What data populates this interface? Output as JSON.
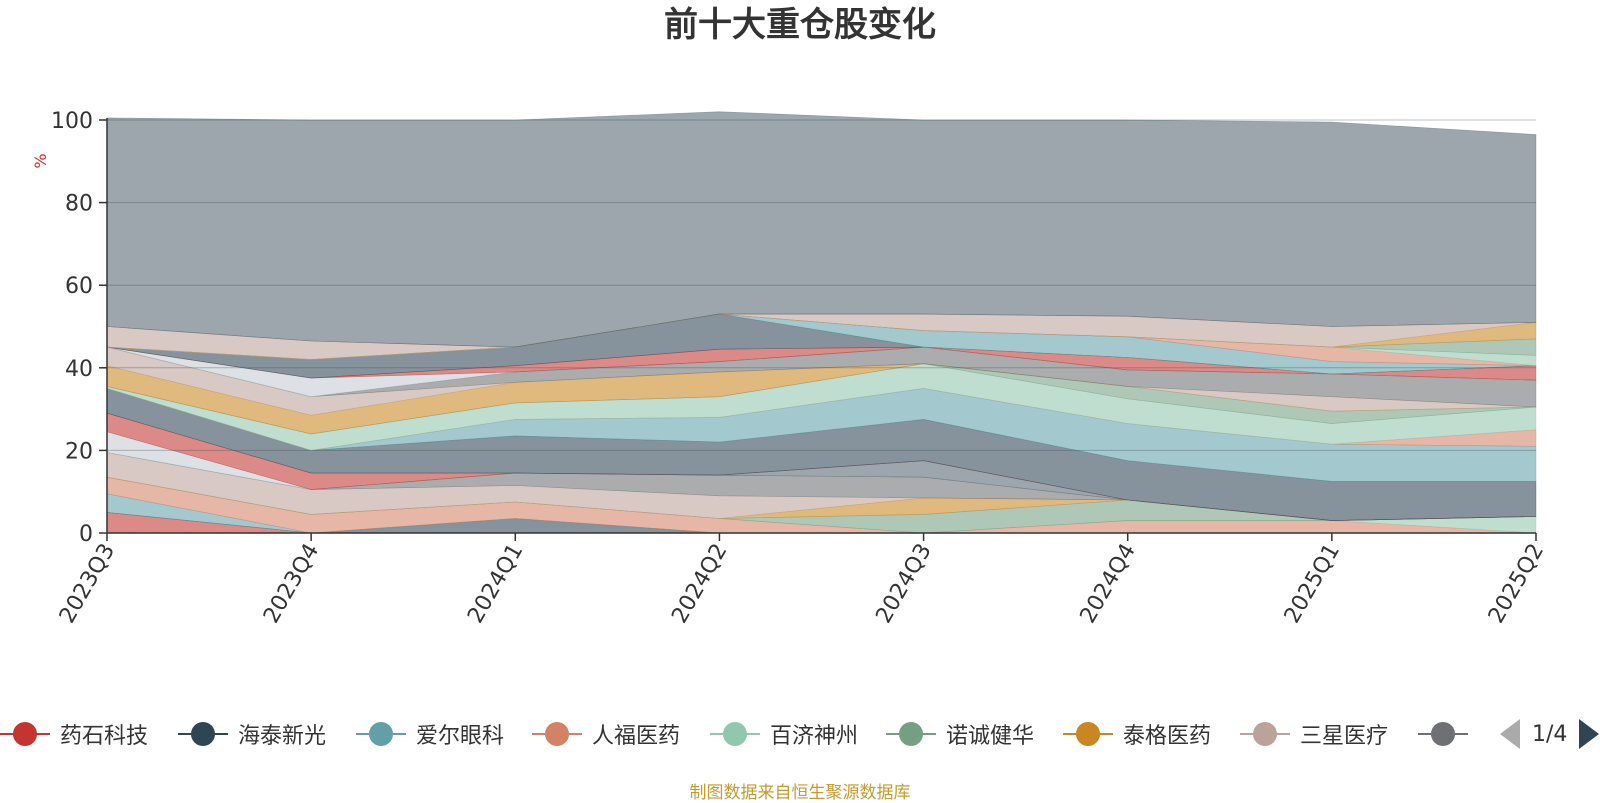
{
  "footer": {
    "source": "制图数据来自恒生聚源数据库"
  },
  "legend_pager": {
    "text": "1/4"
  },
  "chart_data": {
    "type": "area",
    "title": "前十大重仓股变化",
    "ylabel": "%",
    "ylim": [
      0,
      100
    ],
    "yticks": [
      0,
      20,
      40,
      60,
      80,
      100
    ],
    "grid": true,
    "legend_placement": "bottom",
    "categories": [
      "2023Q3",
      "2023Q4",
      "2024Q1",
      "2024Q2",
      "2024Q3",
      "2024Q4",
      "2025Q1",
      "2025Q2"
    ],
    "series": [
      {
        "name": "药石科技",
        "color": "#c23531",
        "values": [
          5,
          0,
          0,
          0,
          0,
          0,
          0,
          0
        ]
      },
      {
        "name": "海泰新光",
        "color": "#2f4554",
        "values": [
          0,
          0,
          3.5,
          0,
          0,
          0,
          0,
          0
        ]
      },
      {
        "name": "爱尔眼科",
        "color": "#61a0a8",
        "values": [
          4.5,
          0,
          0,
          0,
          0,
          0,
          0,
          0
        ]
      },
      {
        "name": "人福医药",
        "color": "#d48265",
        "values": [
          4,
          4.5,
          4,
          3.5,
          0,
          3,
          3,
          0
        ]
      },
      {
        "name": "百济神州",
        "color": "#91c7ae",
        "values": [
          0,
          0,
          0,
          0,
          0,
          0,
          0,
          4
        ]
      },
      {
        "name": "诺诚健华",
        "color": "#749f83",
        "values": [
          0,
          0,
          0,
          0,
          4.5,
          5,
          0,
          0
        ]
      },
      {
        "name": "泰格医药",
        "color": "#ca8622",
        "values": [
          0,
          0,
          0,
          0,
          4,
          0,
          0,
          0
        ]
      },
      {
        "name": "三星医疗",
        "color": "#bda29a",
        "values": [
          6,
          6,
          4,
          5.5,
          0,
          0,
          0,
          0
        ]
      },
      {
        "name": "",
        "color": "#6e7074",
        "values": [
          0,
          0,
          3,
          5,
          5,
          0,
          0,
          0
        ]
      },
      {
        "name": "",
        "color": "#546570",
        "values": [
          0,
          0,
          0,
          0,
          4,
          0,
          0,
          0
        ]
      },
      {
        "name": "",
        "color": "#c4ccd3",
        "values": [
          5,
          0,
          0,
          0,
          0,
          0,
          0,
          0
        ]
      },
      {
        "name": "",
        "color": "#c23531",
        "values": [
          4.5,
          4,
          0,
          0,
          0,
          0,
          0,
          0
        ]
      },
      {
        "name": "",
        "color": "#2f4554",
        "values": [
          6,
          5.5,
          9,
          8,
          10,
          9.5,
          9.5,
          8.5
        ]
      },
      {
        "name": "",
        "color": "#61a0a8",
        "values": [
          0,
          0,
          4,
          6,
          7.5,
          9,
          9,
          8.5
        ]
      },
      {
        "name": "",
        "color": "#d48265",
        "values": [
          0,
          0,
          0,
          0,
          0,
          0,
          0,
          4
        ]
      },
      {
        "name": "",
        "color": "#91c7ae",
        "values": [
          0.5,
          4,
          4,
          5,
          6,
          6,
          5,
          5.5
        ]
      },
      {
        "name": "",
        "color": "#749f83",
        "values": [
          0,
          0,
          0,
          0,
          0,
          3,
          3,
          0
        ]
      },
      {
        "name": "",
        "color": "#ca8622",
        "values": [
          5,
          4.5,
          5,
          6,
          0,
          0,
          0,
          0
        ]
      },
      {
        "name": "",
        "color": "#bda29a",
        "values": [
          4.5,
          4.5,
          0,
          0,
          0,
          0,
          3.5,
          0
        ]
      },
      {
        "name": "",
        "color": "#6e7074",
        "values": [
          0,
          0,
          2.5,
          2.5,
          4,
          4,
          5.5,
          6.5
        ]
      },
      {
        "name": "",
        "color": "#546570",
        "values": [
          0,
          0,
          0,
          0,
          0,
          0,
          0,
          0
        ]
      },
      {
        "name": "",
        "color": "#c4ccd3",
        "values": [
          0,
          4.5,
          0,
          0,
          0,
          0,
          0,
          0
        ]
      },
      {
        "name": "",
        "color": "#c23531",
        "values": [
          0,
          0,
          1.5,
          3,
          0,
          3,
          0,
          3.5
        ]
      },
      {
        "name": "",
        "color": "#2f4554",
        "values": [
          0,
          4.5,
          4.5,
          8.5,
          0,
          0,
          0,
          0
        ]
      },
      {
        "name": "",
        "color": "#61a0a8",
        "values": [
          0,
          0,
          0,
          0,
          4,
          5,
          3,
          0
        ]
      },
      {
        "name": "",
        "color": "#d48265",
        "values": [
          0,
          0,
          0,
          0,
          0,
          0,
          3.5,
          0
        ]
      },
      {
        "name": "",
        "color": "#91c7ae",
        "values": [
          0,
          0,
          0,
          0,
          0,
          0,
          0,
          2.5
        ]
      },
      {
        "name": "",
        "color": "#749f83",
        "values": [
          0,
          0,
          0,
          0,
          0,
          0,
          0,
          4
        ]
      },
      {
        "name": "",
        "color": "#ca8622",
        "values": [
          0,
          0,
          0,
          0,
          0,
          0,
          0,
          4
        ]
      },
      {
        "name": "",
        "color": "#bda29a",
        "values": [
          5,
          4.5,
          0,
          0,
          4,
          5,
          5,
          0
        ]
      },
      {
        "name": "",
        "color": "#6e7074",
        "values": [
          0,
          0,
          0,
          0,
          0,
          0,
          0,
          0
        ]
      },
      {
        "name": "",
        "color": "#546570",
        "values": [
          50.5,
          53.5,
          55,
          49,
          47,
          47.5,
          49.5,
          45.5
        ]
      }
    ]
  }
}
